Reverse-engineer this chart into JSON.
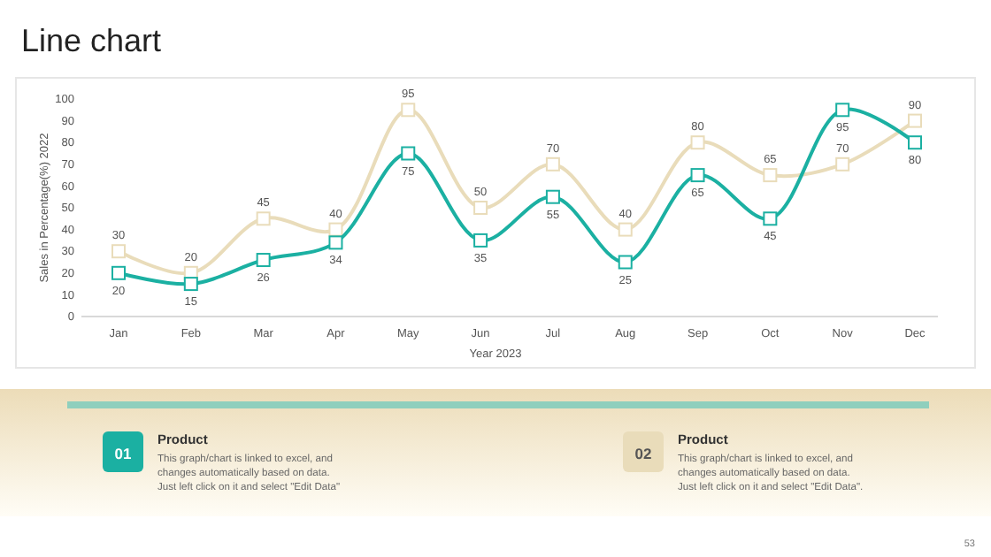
{
  "chart_data": {
    "type": "line",
    "title": "Line chart",
    "xlabel": "Year 2023",
    "ylabel": "Sales in Percentage(%) 2022",
    "categories": [
      "Jan",
      "Feb",
      "Mar",
      "Apr",
      "May",
      "Jun",
      "Jul",
      "Aug",
      "Sep",
      "Oct",
      "Nov",
      "Dec"
    ],
    "series": [
      {
        "color": "#e9dcba",
        "values": [
          30,
          20,
          45,
          40,
          95,
          50,
          70,
          40,
          80,
          65,
          70,
          90
        ]
      },
      {
        "color": "#1bb0a2",
        "values": [
          20,
          15,
          26,
          34,
          75,
          35,
          55,
          25,
          65,
          45,
          95,
          80
        ]
      }
    ],
    "ylim": [
      0,
      100
    ],
    "yticks": [
      0,
      10,
      20,
      30,
      40,
      50,
      60,
      70,
      80,
      90,
      100
    ],
    "grid": false,
    "marker": "square",
    "line_style": "solid",
    "data_labels": true,
    "annotations": [
      "01",
      "Product",
      "This graph/chart is linked to excel, and changes automatically based on data. Just left click on it and select \"Edit Data\"",
      "02",
      "Product",
      "This graph/chart is linked to excel, and changes automatically based on data. Just left click on it and select \"Edit Data\".",
      "53"
    ]
  }
}
